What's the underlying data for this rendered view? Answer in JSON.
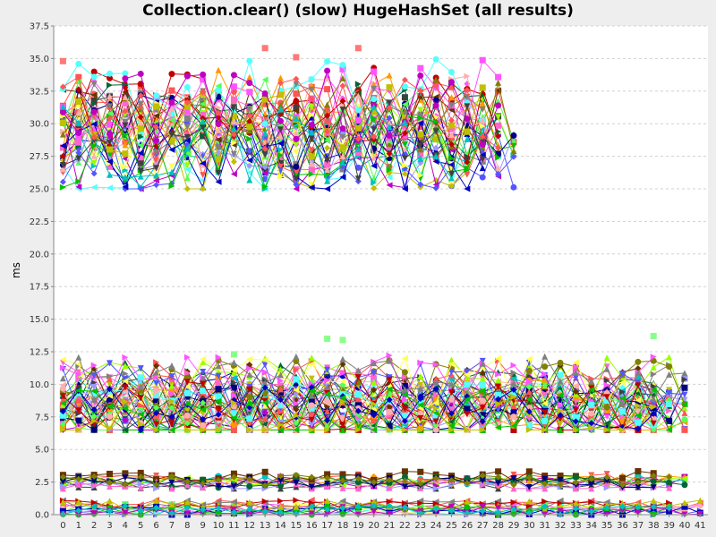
{
  "chart_data": {
    "type": "line",
    "title": "Collection.clear() (slow) HugeHashSet (all results)",
    "xlabel": "",
    "ylabel": "ms",
    "xlim": [
      -0.6,
      41.5
    ],
    "ylim": [
      0.0,
      37.5
    ],
    "x_ticks": [
      "0",
      "1",
      "2",
      "3",
      "4",
      "5",
      "6",
      "7",
      "8",
      "9",
      "10",
      "11",
      "12",
      "13",
      "14",
      "15",
      "16",
      "17",
      "18",
      "19",
      "20",
      "21",
      "22",
      "23",
      "24",
      "25",
      "26",
      "27",
      "28",
      "29",
      "30",
      "31",
      "32",
      "33",
      "34",
      "35",
      "36",
      "37",
      "38",
      "39",
      "40",
      "41"
    ],
    "y_ticks": [
      "0.0",
      "2.5",
      "5.0",
      "7.5",
      "10.0",
      "12.5",
      "15.0",
      "17.5",
      "20.0",
      "22.5",
      "25.0",
      "27.5",
      "30.0",
      "32.5",
      "35.0",
      "37.5"
    ],
    "grid": true,
    "legend": "none",
    "series_groups": [
      {
        "name_hint": "",
        "approx_range": [
          25.0,
          36.0
        ],
        "x_range": [
          0,
          29
        ],
        "center": 29.8,
        "count": 40
      },
      {
        "name_hint": "",
        "approx_range": [
          6.5,
          13.8
        ],
        "x_range": [
          0,
          40
        ],
        "center": 8.6,
        "count": 44
      },
      {
        "name_hint": "",
        "approx_range": [
          2.0,
          3.5
        ],
        "x_range": [
          0,
          40
        ],
        "center": 2.6,
        "count": 12
      },
      {
        "name_hint": "",
        "approx_range": [
          0.0,
          1.3
        ],
        "x_range": [
          0,
          41
        ],
        "center": 0.5,
        "count": 14
      }
    ],
    "highlighted_points": [
      {
        "x": 13,
        "y": 35.8
      },
      {
        "x": 19,
        "y": 35.8
      },
      {
        "x": 15,
        "y": 35.1
      },
      {
        "x": 0,
        "y": 34.8
      },
      {
        "x": 17,
        "y": 13.5
      },
      {
        "x": 18,
        "y": 13.4
      },
      {
        "x": 38,
        "y": 13.7
      },
      {
        "x": 11,
        "y": 12.3
      }
    ],
    "palette": [
      "#ff5555",
      "#5555ff",
      "#55ff55",
      "#ffff55",
      "#ff55ff",
      "#55ffff",
      "#ffafaf",
      "#808080",
      "#c00000",
      "#0000c0",
      "#00c000",
      "#c0c000",
      "#c000c0",
      "#00c0c0",
      "#404040",
      "#ff5555",
      "#ff9900",
      "#99ff00",
      "#9999ff",
      "#663300",
      "#006633",
      "#ff66cc",
      "#000080",
      "#808000"
    ]
  }
}
